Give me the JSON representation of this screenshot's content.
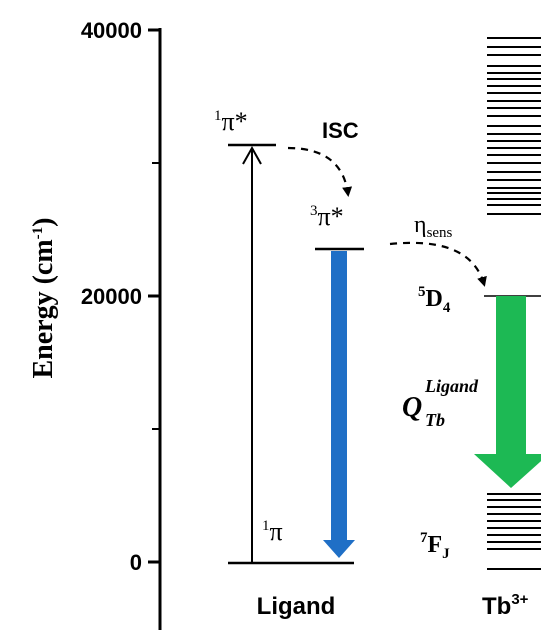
{
  "axis": {
    "title_main": "Energy (cm",
    "title_sup": "-1",
    "title_close": ")",
    "ticks": [
      "40000",
      "20000",
      "0"
    ],
    "tick_values": [
      40000,
      20000,
      0
    ]
  },
  "ligand": {
    "label": "Ligand",
    "s1": {
      "sup": "1",
      "sym": "π*",
      "energy": 31300
    },
    "t1": {
      "sup": "3",
      "sym": "π*",
      "energy": 23500
    },
    "s0": {
      "sup": "1",
      "sym": "π",
      "energy": 0
    }
  },
  "transitions": {
    "isc": "ISC",
    "eta": "η",
    "eta_sub": "sens",
    "q_main": "Q",
    "q_sup": "Ligand",
    "q_sub": "Tb"
  },
  "ion": {
    "label_main": "Tb",
    "label_sup": "3+",
    "d4": {
      "sup": "5",
      "main": "D",
      "sub": "4",
      "energy": 20000
    },
    "fj": {
      "sup": "7",
      "main": "F",
      "sub": "J"
    }
  },
  "colors": {
    "blue_arrow": "#1f6fc6",
    "green_arrow": "#1db954",
    "ink": "#000000"
  }
}
